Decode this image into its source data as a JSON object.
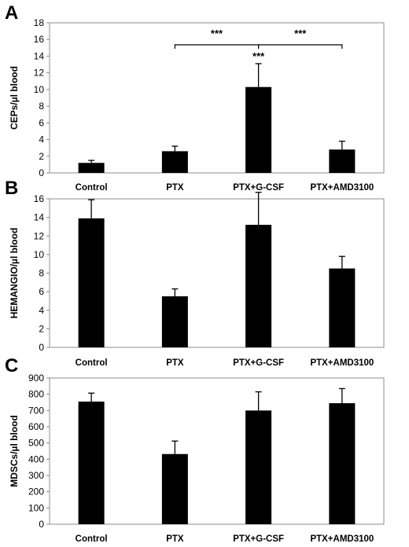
{
  "chart_data": [
    {
      "type": "bar",
      "panel": "A",
      "ylabel": "CEPs/µl blood",
      "categories": [
        "Control",
        "PTX",
        "PTX+G-CSF",
        "PTX+AMD3100"
      ],
      "values": [
        1.2,
        2.6,
        10.3,
        2.8
      ],
      "errors": [
        0.3,
        0.6,
        2.8,
        1.0
      ],
      "ylim": [
        0,
        18
      ],
      "yticks": [
        0,
        2,
        4,
        6,
        8,
        10,
        12,
        14,
        16,
        18
      ],
      "annotations": [
        {
          "text": "***",
          "type": "bracket",
          "from": 1,
          "to": 2
        },
        {
          "text": "***",
          "type": "bracket",
          "from": 2,
          "to": 3
        },
        {
          "text": "***",
          "type": "bar",
          "at": 2
        }
      ]
    },
    {
      "type": "bar",
      "panel": "B",
      "ylabel": "HEMANGIO/µl blood",
      "categories": [
        "Control",
        "PTX",
        "PTX+G-CSF",
        "PTX+AMD3100"
      ],
      "values": [
        13.9,
        5.5,
        13.2,
        8.5
      ],
      "errors": [
        2.0,
        0.8,
        3.5,
        1.3
      ],
      "ylim": [
        0,
        16
      ],
      "yticks": [
        0,
        2,
        4,
        6,
        8,
        10,
        12,
        14,
        16
      ],
      "annotations": []
    },
    {
      "type": "bar",
      "panel": "C",
      "ylabel": "MDSCs/µl blood",
      "categories": [
        "Control",
        "PTX",
        "PTX+G-CSF",
        "PTX+AMD3100"
      ],
      "values": [
        755,
        432,
        700,
        745
      ],
      "errors": [
        52,
        80,
        115,
        90
      ],
      "ylim": [
        0,
        900
      ],
      "yticks": [
        0,
        100,
        200,
        300,
        400,
        500,
        600,
        700,
        800,
        900
      ],
      "annotations": []
    }
  ]
}
